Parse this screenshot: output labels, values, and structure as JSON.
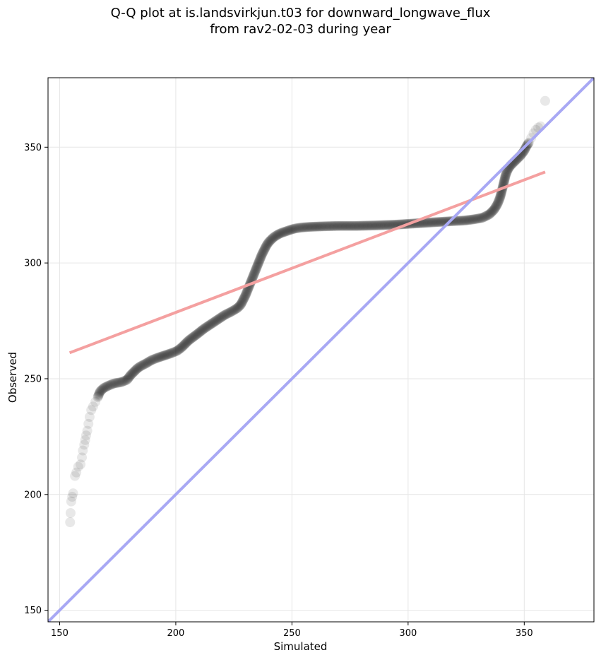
{
  "chart_data": {
    "type": "scatter",
    "title": "Q-Q plot at is.landsvirkjun.t03 for downward_longwave_flux",
    "subtitle": "from rav2-02-03 during year",
    "xlabel": "Simulated",
    "ylabel": "Observed",
    "xlim": [
      145,
      380
    ],
    "ylim": [
      145,
      380
    ],
    "xticks": [
      150,
      200,
      250,
      300,
      350
    ],
    "yticks": [
      150,
      200,
      250,
      300,
      350
    ],
    "grid": true,
    "colors": {
      "points": "#000000",
      "fit_line": "#f4a0a0",
      "identity_line": "#a8a8f4"
    },
    "fit_line": {
      "x": [
        154.3,
        359
      ],
      "y": [
        261.2,
        339.3
      ]
    },
    "identity_line": {
      "x": [
        145,
        380
      ],
      "y": [
        145,
        380
      ]
    },
    "quantiles": {
      "x": [
        154.5,
        154.7,
        155.0,
        155.4,
        155.8,
        156.6,
        157.2,
        158.0,
        159.0,
        159.6,
        160.0,
        160.6,
        161.0,
        161.4,
        161.9,
        162.4,
        162.9,
        163.6,
        164.4,
        165.4,
        166.4,
        167.4,
        169.0,
        171.0,
        173.5,
        176.5,
        179.0,
        180.5,
        182.0,
        183.5,
        185.0,
        187.0,
        189.5,
        192.0,
        195.0,
        198.0,
        200.5,
        202.5,
        204.0,
        205.5,
        207.5,
        209.5,
        212.0,
        215.0,
        218.0,
        221.0,
        224.0,
        226.5,
        228.0,
        229.0,
        230.0,
        231.0,
        232.0,
        233.0,
        234.0,
        235.0,
        236.0,
        237.0,
        238.0,
        239.0,
        240.0,
        241.0,
        242.0,
        243.5,
        245.0,
        247.0,
        249.0,
        251.0,
        254.0,
        258.0,
        263.0,
        270.0,
        278.0,
        286.0,
        294.0,
        302.0,
        310.0,
        318.0,
        324.0,
        328.0,
        332.0,
        335.0,
        337.0,
        338.5,
        339.5,
        340.2,
        340.8,
        341.4,
        342.0,
        343.0,
        344.0,
        345.5,
        347.0,
        348.5,
        350.0,
        351.0,
        352.0,
        353.0,
        354.0,
        355.0,
        356.0,
        357.0,
        359.0
      ],
      "y": [
        188.0,
        192.0,
        197.0,
        199.0,
        200.5,
        208.0,
        209.5,
        212.0,
        213.0,
        216.0,
        219.0,
        221.5,
        223.5,
        225.5,
        227.5,
        230.5,
        233.5,
        236.5,
        238.0,
        240.0,
        242.0,
        244.5,
        246.0,
        247.0,
        248.0,
        248.5,
        249.5,
        251.5,
        253.0,
        254.5,
        255.5,
        256.5,
        258.0,
        259.0,
        260.0,
        261.0,
        262.0,
        263.5,
        265.0,
        266.5,
        268.0,
        269.5,
        271.5,
        273.5,
        275.5,
        277.5,
        279.0,
        280.5,
        282.0,
        284.0,
        286.0,
        288.5,
        291.0,
        293.5,
        296.0,
        298.5,
        301.0,
        303.5,
        305.5,
        307.5,
        309.0,
        310.0,
        311.0,
        312.0,
        312.8,
        313.5,
        314.2,
        314.8,
        315.3,
        315.6,
        315.8,
        316.0,
        316.0,
        316.2,
        316.5,
        317.0,
        317.5,
        318.0,
        318.3,
        318.8,
        319.5,
        321.0,
        323.0,
        325.5,
        328.0,
        330.5,
        333.0,
        335.5,
        338.0,
        340.5,
        342.0,
        343.5,
        345.0,
        346.5,
        348.5,
        350.5,
        352.0,
        354.0,
        356.0,
        357.5,
        358.5,
        359.0,
        370.0
      ]
    }
  }
}
